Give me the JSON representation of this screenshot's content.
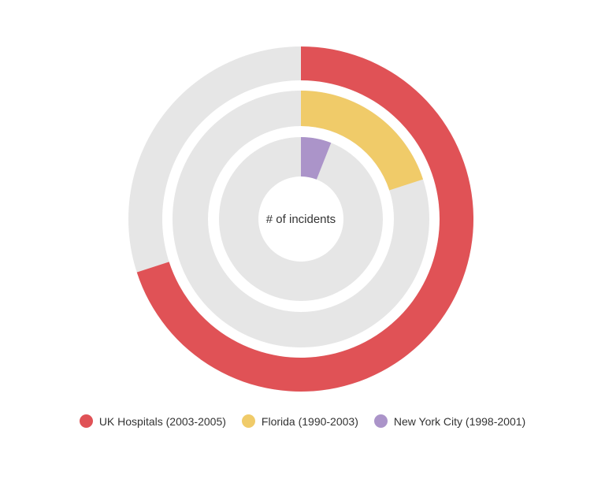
{
  "chart_data": {
    "type": "radial-bar",
    "center_label": "# of incidents",
    "track_color": "#e6e6e6",
    "series": [
      {
        "name": "UK Hospitals (2003-2005)",
        "fraction": 0.7,
        "color": "#e05256"
      },
      {
        "name": "Florida (1990-2003)",
        "fraction": 0.2,
        "color": "#f0cb69"
      },
      {
        "name": "New York City (1998-2001)",
        "fraction": 0.06,
        "color": "#ab94c9"
      }
    ],
    "legend_position": "bottom"
  }
}
